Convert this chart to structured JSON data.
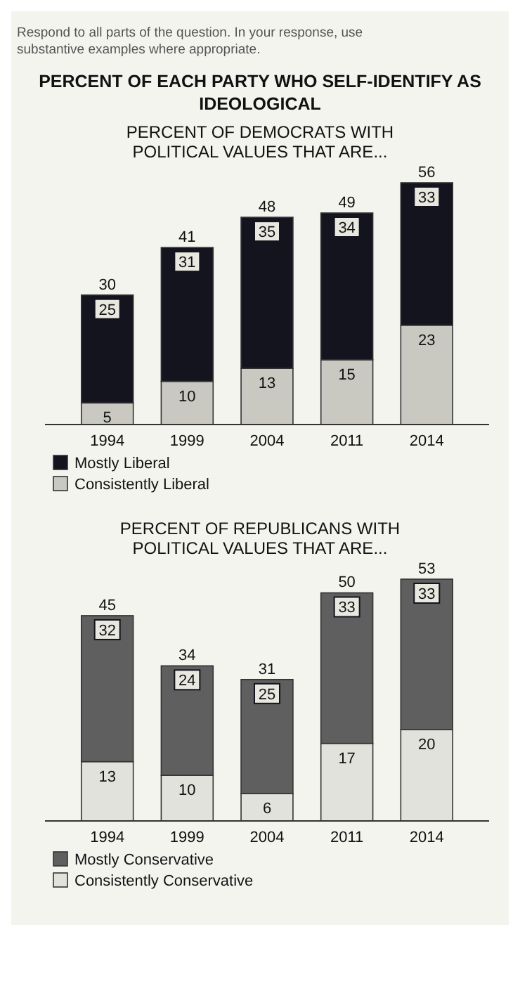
{
  "chart_data": [
    {
      "type": "bar",
      "title": "PERCENT OF EACH PARTY WHO SELF-IDENTIFY AS IDEOLOGICAL",
      "subtitle": "PERCENT OF DEMOCRATS WITH POLITICAL VALUES THAT ARE...",
      "annotations": [
        "Respond to all parts of the question. In your response, use substantive examples where appropriate."
      ],
      "categories": [
        "1994",
        "1999",
        "2004",
        "2011",
        "2014"
      ],
      "stacked": true,
      "data_labels": true,
      "totals": [
        "30",
        "41",
        "48",
        "49",
        "56"
      ],
      "legend": "bottom",
      "series": [
        {
          "name": "Consistently Liberal",
          "color": "#c9c9c1",
          "values": [
            5,
            10,
            13,
            15,
            23
          ]
        },
        {
          "name": "Mostly Liberal",
          "color": "#14141f",
          "values": [
            25,
            31,
            35,
            34,
            33
          ]
        }
      ]
    },
    {
      "type": "bar",
      "subtitle": "PERCENT OF REPUBLICANS WITH POLITICAL VALUES THAT ARE...",
      "categories": [
        "1994",
        "1999",
        "2004",
        "2011",
        "2014"
      ],
      "stacked": true,
      "data_labels": true,
      "totals": [
        "45",
        "34",
        "31",
        "50",
        "53"
      ],
      "legend": "bottom",
      "series": [
        {
          "name": "Consistently Conservative",
          "color": "#e2e2dc",
          "values": [
            13,
            10,
            6,
            17,
            20
          ]
        },
        {
          "name": "Mostly Conservative",
          "color": "#5f5f5f",
          "values": [
            32,
            24,
            25,
            33,
            33
          ]
        }
      ]
    }
  ]
}
